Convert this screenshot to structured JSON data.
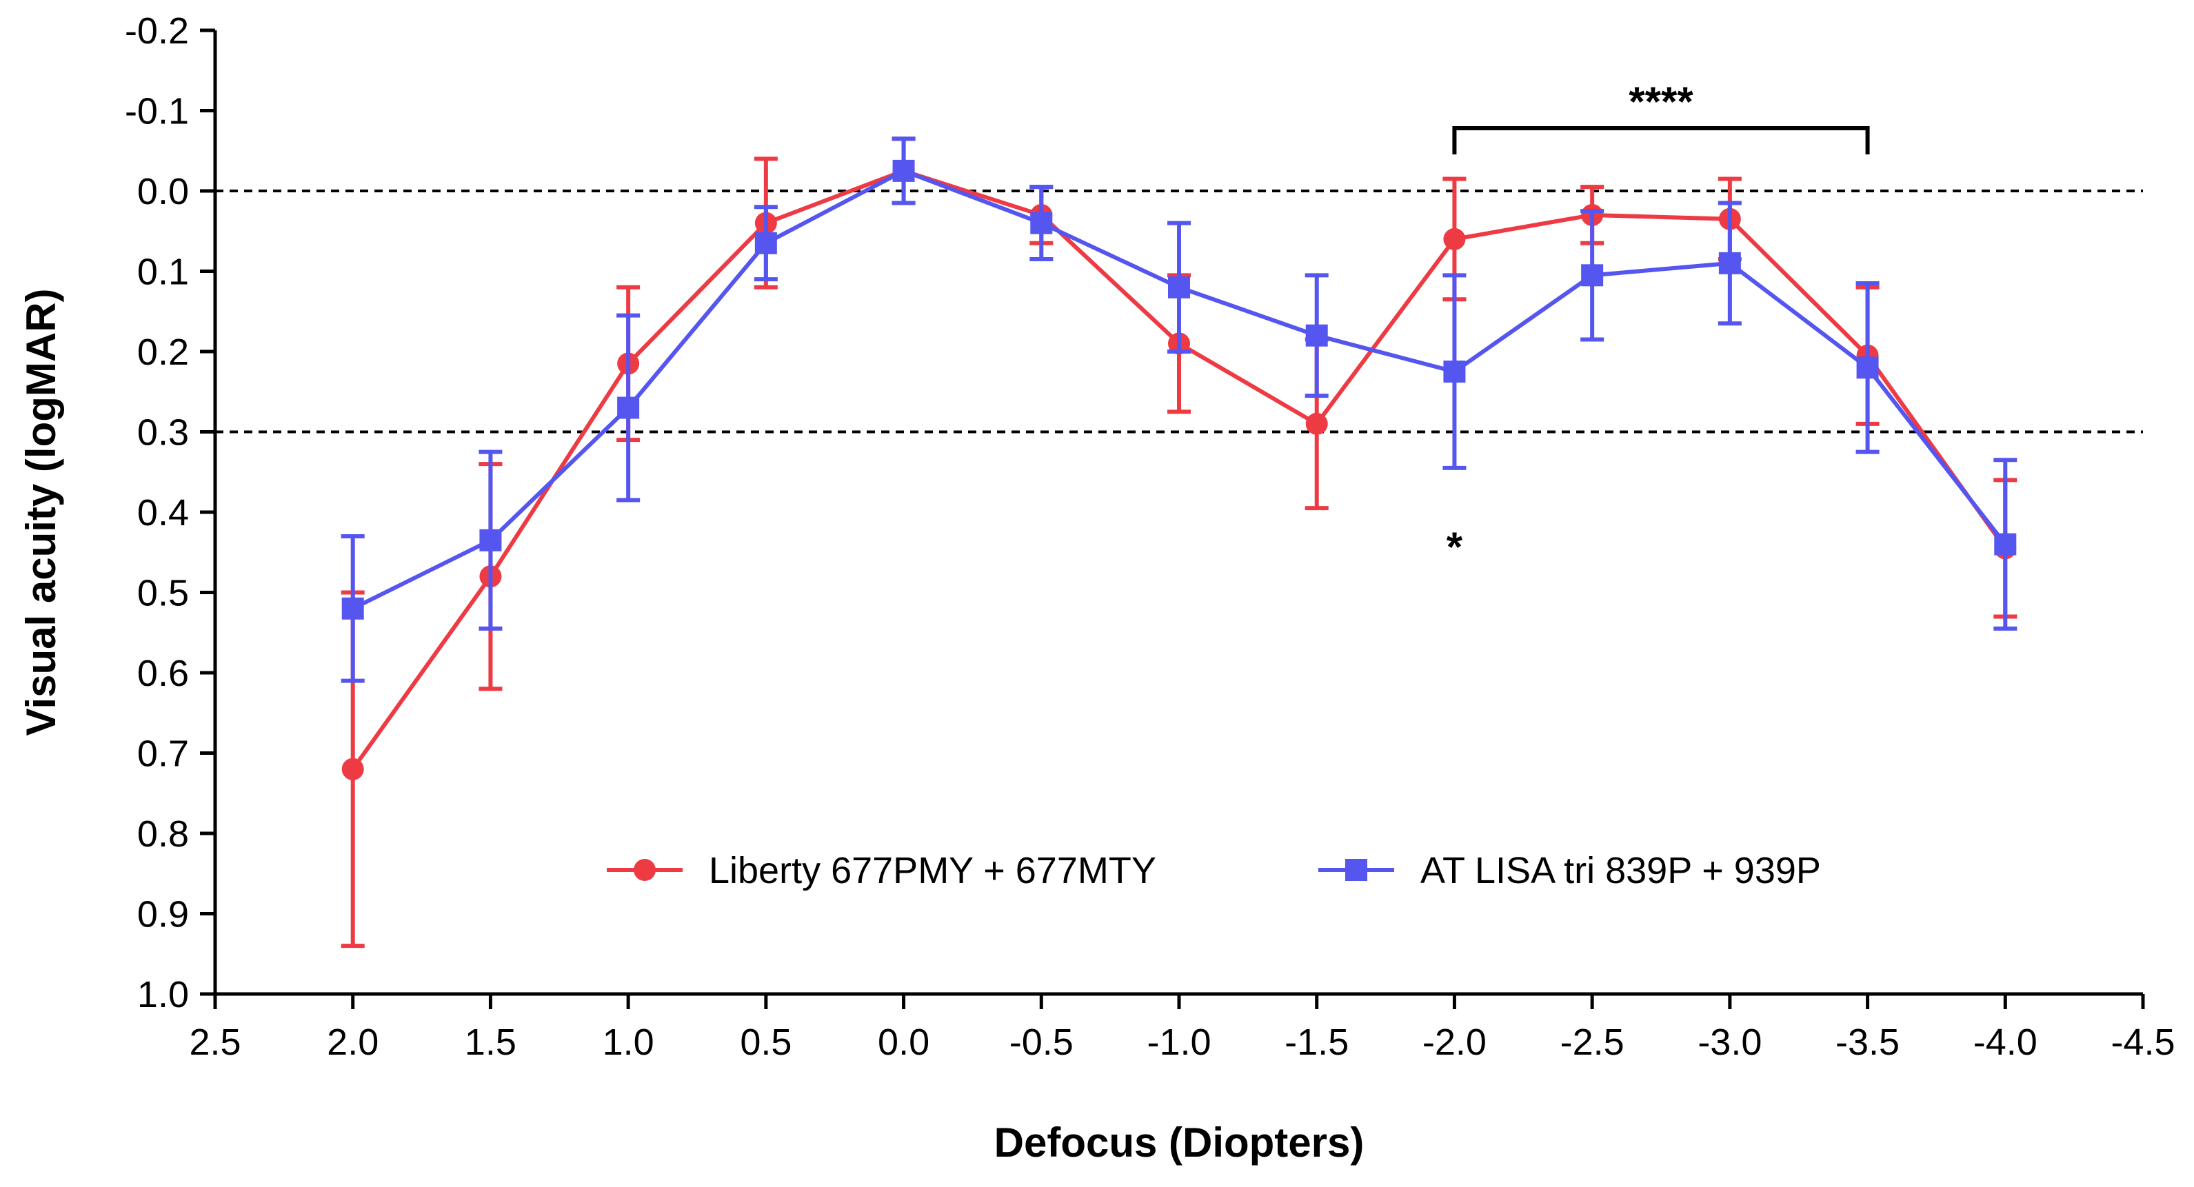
{
  "chart_data": {
    "type": "line",
    "title": "",
    "xlabel": "Defocus (Diopters)",
    "ylabel": "Visual acuity (logMAR)",
    "x": [
      2.0,
      1.5,
      1.0,
      0.5,
      0.0,
      -0.5,
      -1.0,
      -1.5,
      -2.0,
      -2.5,
      -3.0,
      -3.5,
      -4.0
    ],
    "xlim": [
      2.5,
      -4.5
    ],
    "ylim": [
      1.0,
      -0.2
    ],
    "y_inverted": true,
    "xticks": [
      2.5,
      2.0,
      1.5,
      1.0,
      0.5,
      0.0,
      -0.5,
      -1.0,
      -1.5,
      -2.0,
      -2.5,
      -3.0,
      -3.5,
      -4.0,
      -4.5
    ],
    "xtick_labels": [
      "2.5",
      "2.0",
      "1.5",
      "1.0",
      "0.5",
      "0.0",
      "-0.5",
      "-1.0",
      "-1.5",
      "-2.0",
      "-2.5",
      "-3.0",
      "-3.5",
      "-4.0",
      "-4.5"
    ],
    "yticks": [
      -0.2,
      -0.1,
      0.0,
      0.1,
      0.2,
      0.3,
      0.4,
      0.5,
      0.6,
      0.7,
      0.8,
      0.9,
      1.0
    ],
    "ytick_labels": [
      "-0.2",
      "-0.1",
      "0.0",
      "0.1",
      "0.2",
      "0.3",
      "0.4",
      "0.5",
      "0.6",
      "0.7",
      "0.8",
      "0.9",
      "1.0"
    ],
    "reference_lines": [
      0.0,
      0.3
    ],
    "series": [
      {
        "name": "Liberty 677PMY + 677MTY",
        "color": "#ee3a43",
        "marker": "circle",
        "values": [
          0.72,
          0.48,
          0.215,
          0.04,
          -0.025,
          0.03,
          0.19,
          0.29,
          0.06,
          0.03,
          0.035,
          0.205,
          0.445
        ],
        "error": [
          0.22,
          0.14,
          0.095,
          0.08,
          0.04,
          0.035,
          0.085,
          0.105,
          0.075,
          0.035,
          0.05,
          0.085,
          0.085
        ]
      },
      {
        "name": "AT LISA tri 839P + 939P",
        "color": "#5555f0",
        "marker": "square",
        "values": [
          0.52,
          0.435,
          0.27,
          0.065,
          -0.025,
          0.04,
          0.12,
          0.18,
          0.225,
          0.105,
          0.09,
          0.22,
          0.44
        ],
        "error": [
          0.09,
          0.11,
          0.115,
          0.045,
          0.04,
          0.045,
          0.08,
          0.075,
          0.12,
          0.08,
          0.075,
          0.105,
          0.105
        ]
      }
    ],
    "annotations": [
      {
        "text": "****",
        "bracket_from": -2.0,
        "bracket_to": -3.5,
        "note": "significance bracket"
      },
      {
        "text": "*",
        "at_x": -2.0,
        "at_y": 0.43
      }
    ],
    "legend": {
      "placement": "bottom-center",
      "orientation": "horizontal"
    }
  }
}
